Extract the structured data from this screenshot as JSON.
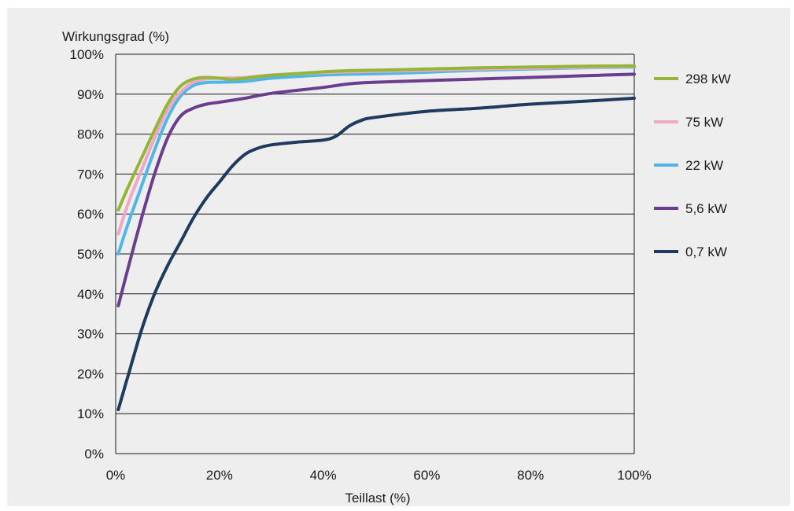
{
  "chart_data": {
    "type": "line",
    "ylabel": "Wirkungsgrad (%)",
    "xlabel": "Teillast (%)",
    "xlim": [
      0,
      100
    ],
    "ylim": [
      0,
      100
    ],
    "x_ticks": [
      "0%",
      "20%",
      "40%",
      "60%",
      "80%",
      "100%"
    ],
    "y_ticks": [
      "0%",
      "10%",
      "20%",
      "30%",
      "40%",
      "50%",
      "60%",
      "70%",
      "80%",
      "90%",
      "100%"
    ],
    "grid": "horizontal",
    "legend_position": "right",
    "series": [
      {
        "name": "0,7 kW",
        "color": "#1f3a5f",
        "points": [
          [
            0.5,
            11
          ],
          [
            2.5,
            20
          ],
          [
            5,
            31
          ],
          [
            7.5,
            40
          ],
          [
            10,
            47
          ],
          [
            12.5,
            53
          ],
          [
            15,
            59
          ],
          [
            17.5,
            64
          ],
          [
            20,
            68
          ],
          [
            22.5,
            72
          ],
          [
            25,
            75
          ],
          [
            27.5,
            76.5
          ],
          [
            30,
            77.3
          ],
          [
            35,
            78
          ],
          [
            40,
            78.5
          ],
          [
            42.5,
            79.5
          ],
          [
            45,
            82
          ],
          [
            47.5,
            83.5
          ],
          [
            50,
            84.2
          ],
          [
            60,
            85.7
          ],
          [
            70,
            86.5
          ],
          [
            80,
            87.5
          ],
          [
            90,
            88.2
          ],
          [
            100,
            89
          ]
        ]
      },
      {
        "name": "5,6 kW",
        "color": "#6a3d8f",
        "points": [
          [
            0.5,
            37
          ],
          [
            2.5,
            47
          ],
          [
            5,
            59
          ],
          [
            7.5,
            70
          ],
          [
            10,
            79
          ],
          [
            12.5,
            84.5
          ],
          [
            15,
            86.5
          ],
          [
            17.5,
            87.5
          ],
          [
            20,
            88
          ],
          [
            25,
            89
          ],
          [
            30,
            90.2
          ],
          [
            40,
            91.7
          ],
          [
            45,
            92.6
          ],
          [
            50,
            93
          ],
          [
            60,
            93.4
          ],
          [
            70,
            93.8
          ],
          [
            80,
            94.2
          ],
          [
            90,
            94.6
          ],
          [
            100,
            95
          ]
        ]
      },
      {
        "name": "22 kW",
        "color": "#4fb7e8",
        "points": [
          [
            0.5,
            50
          ],
          [
            2.5,
            58
          ],
          [
            5,
            67
          ],
          [
            7.5,
            76
          ],
          [
            10,
            84
          ],
          [
            12.5,
            89.5
          ],
          [
            15,
            92.2
          ],
          [
            17.5,
            92.9
          ],
          [
            20,
            93
          ],
          [
            25,
            93.2
          ],
          [
            30,
            94
          ],
          [
            40,
            94.8
          ],
          [
            45,
            95
          ],
          [
            50,
            95.1
          ],
          [
            60,
            95.5
          ],
          [
            70,
            96
          ],
          [
            80,
            96.3
          ],
          [
            90,
            96.6
          ],
          [
            100,
            96.8
          ]
        ]
      },
      {
        "name": "75 kW",
        "color": "#f2a6c6",
        "points": [
          [
            0.5,
            55
          ],
          [
            2.5,
            63
          ],
          [
            5,
            71
          ],
          [
            7.5,
            79
          ],
          [
            10,
            86
          ],
          [
            12.5,
            90.5
          ],
          [
            15,
            93
          ],
          [
            17.5,
            93.8
          ],
          [
            20,
            94
          ],
          [
            25,
            94.2
          ],
          [
            30,
            94.8
          ],
          [
            40,
            95.4
          ],
          [
            45,
            95.6
          ],
          [
            50,
            95.7
          ],
          [
            60,
            96
          ],
          [
            70,
            96.3
          ],
          [
            80,
            96.5
          ],
          [
            90,
            96.7
          ],
          [
            100,
            97
          ]
        ]
      },
      {
        "name": "298 kW",
        "color": "#95b536",
        "points": [
          [
            0.5,
            61
          ],
          [
            2.5,
            67
          ],
          [
            5,
            74
          ],
          [
            7.5,
            81
          ],
          [
            10,
            87.5
          ],
          [
            12.5,
            92
          ],
          [
            15,
            93.8
          ],
          [
            17.5,
            94.2
          ],
          [
            20,
            94
          ],
          [
            22.5,
            93.7
          ],
          [
            25,
            94
          ],
          [
            30,
            94.7
          ],
          [
            40,
            95.6
          ],
          [
            45,
            95.9
          ],
          [
            50,
            96
          ],
          [
            60,
            96.3
          ],
          [
            70,
            96.6
          ],
          [
            80,
            96.8
          ],
          [
            90,
            97
          ],
          [
            100,
            97.1
          ]
        ]
      }
    ]
  }
}
